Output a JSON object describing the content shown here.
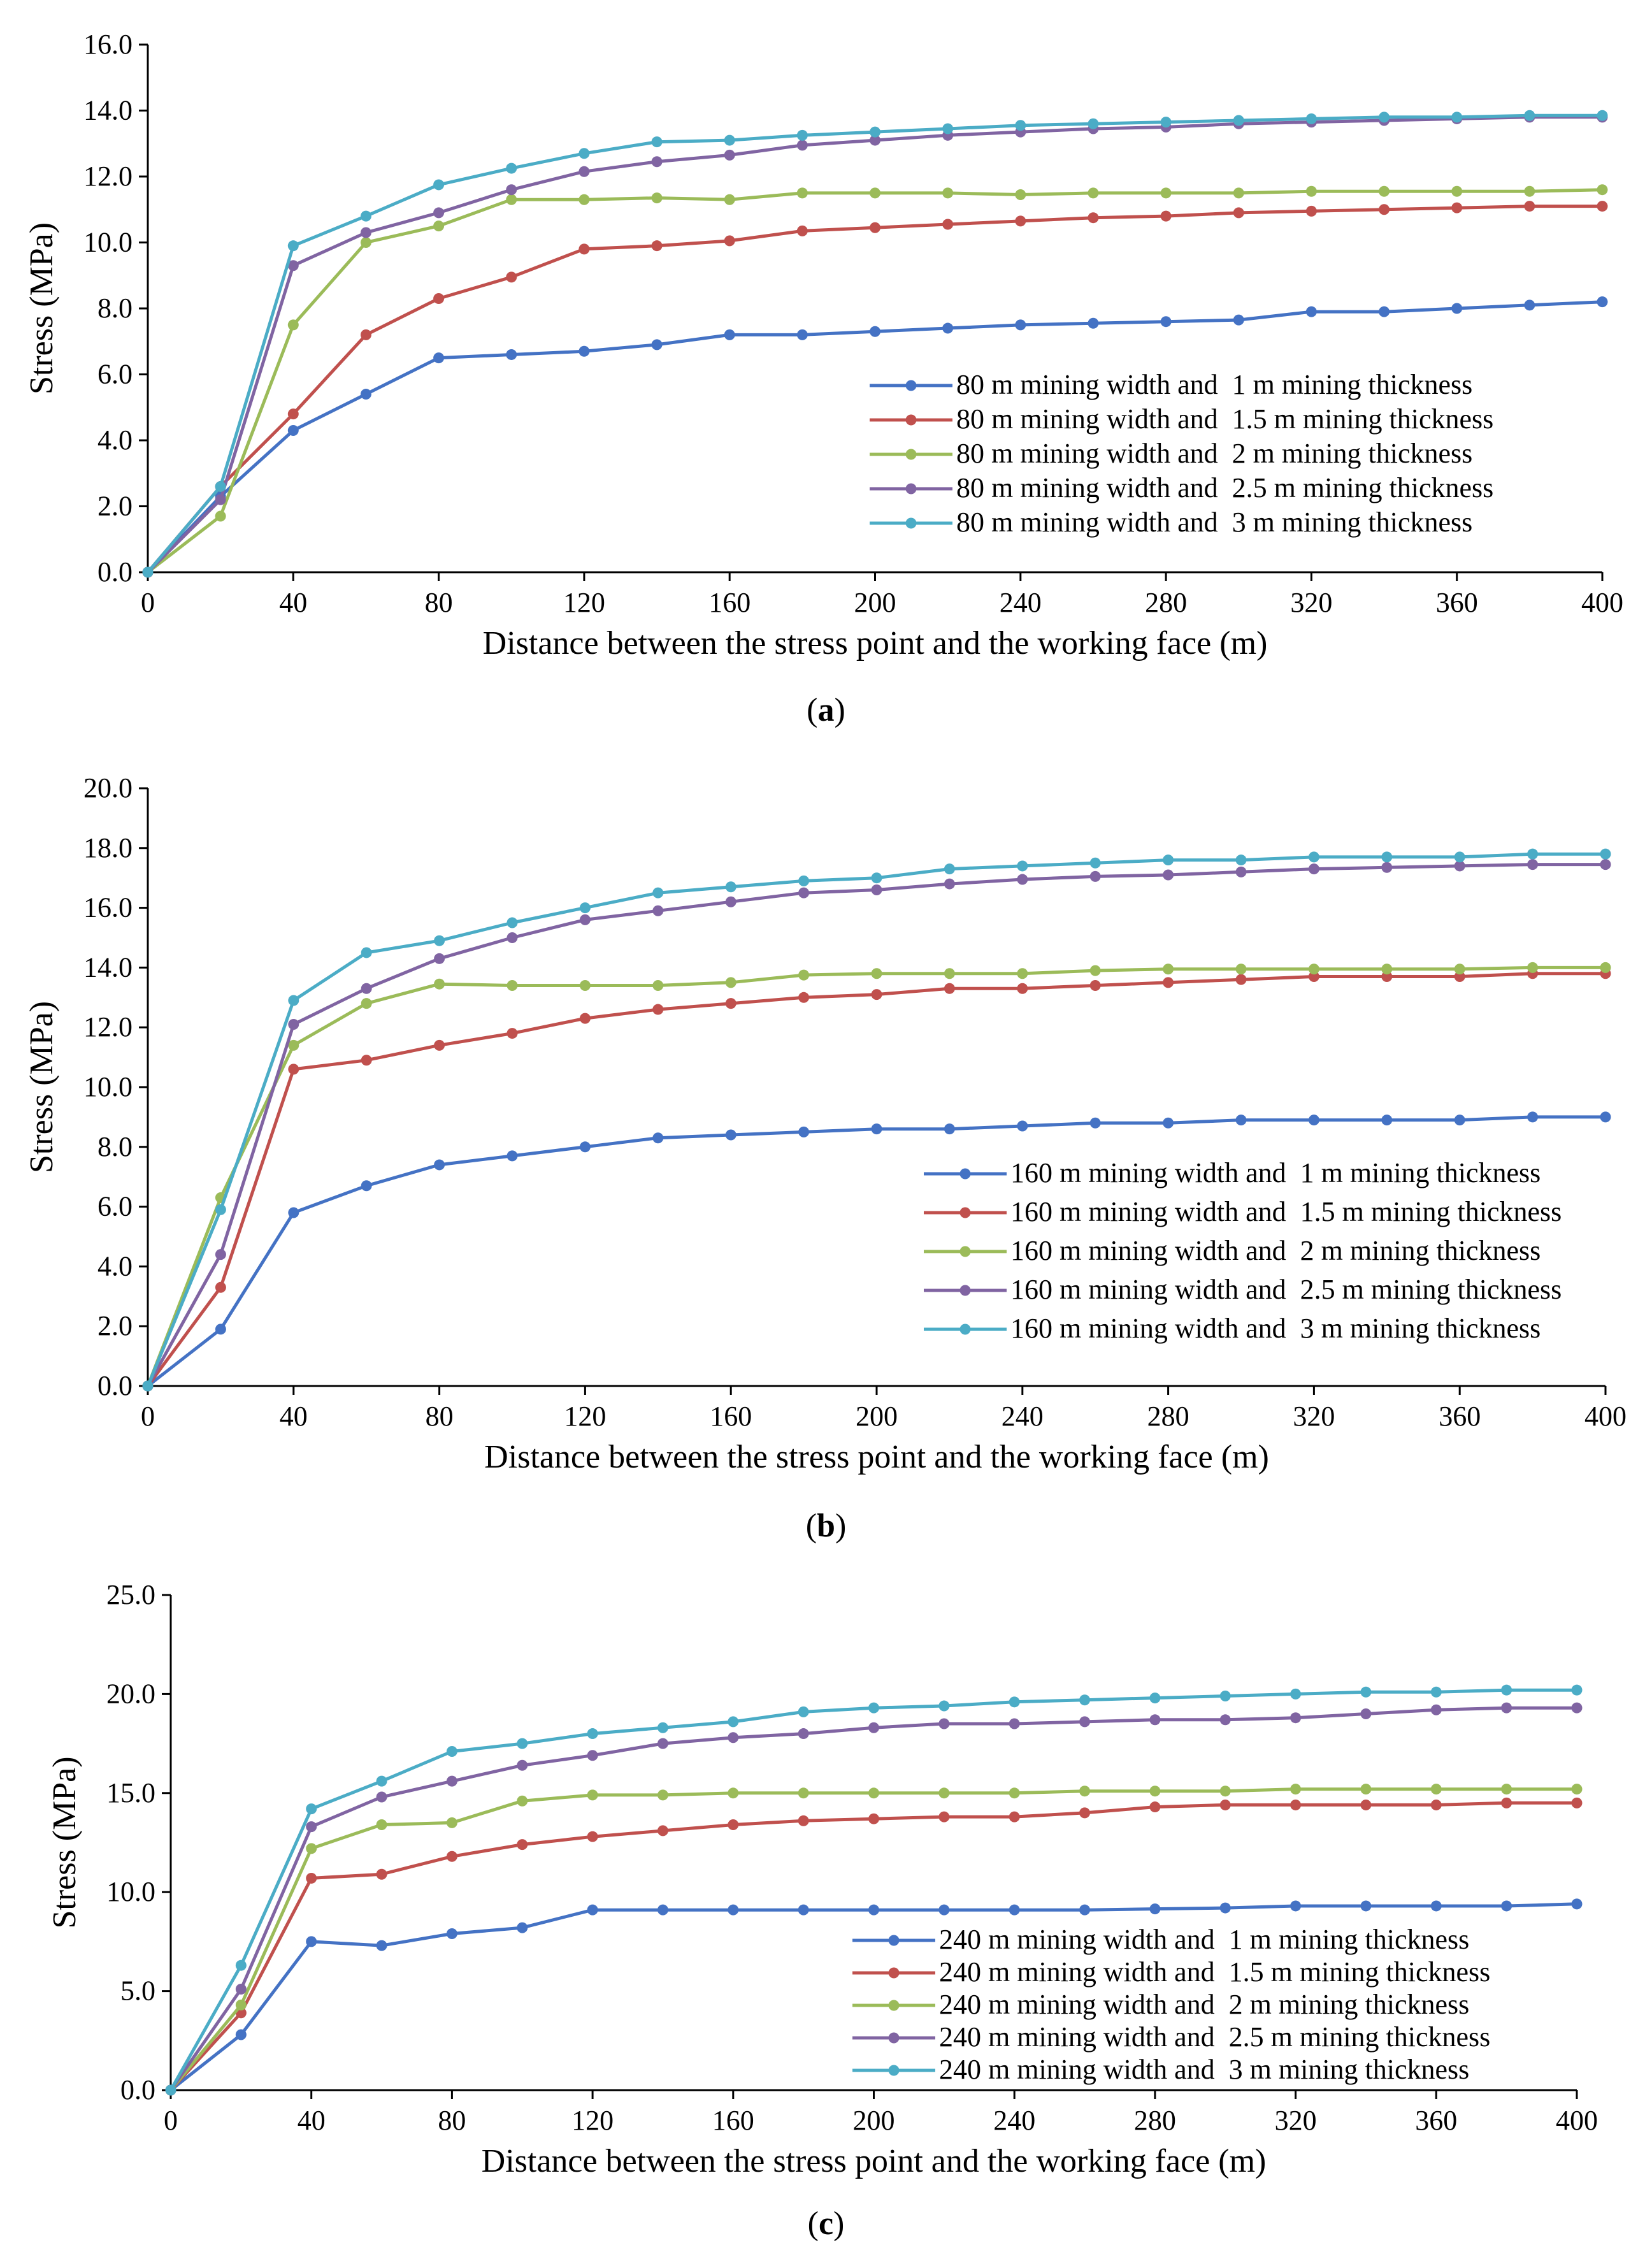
{
  "chart_data": [
    {
      "type": "line",
      "panel_label": "a",
      "xlabel": "Distance between the stress point and the working face (m)",
      "ylabel": "Stress (MPa)",
      "xlim": [
        0,
        400
      ],
      "ylim": [
        0,
        16
      ],
      "xticks": [
        "0",
        "40",
        "80",
        "120",
        "160",
        "200",
        "240",
        "280",
        "320",
        "360",
        "400"
      ],
      "yticks": [
        "0.0",
        "2.0",
        "4.0",
        "6.0",
        "8.0",
        "10.0",
        "12.0",
        "14.0",
        "16.0"
      ],
      "legend_position": "right-middle",
      "x": [
        0,
        20,
        40,
        60,
        80,
        100,
        120,
        140,
        160,
        180,
        200,
        220,
        240,
        260,
        280,
        300,
        320,
        340,
        360,
        380,
        400
      ],
      "series": [
        {
          "name": "80 m mining width and  1 m mining thickness",
          "color": "#4472C4",
          "values": [
            0,
            2.3,
            4.3,
            5.4,
            6.5,
            6.6,
            6.7,
            6.9,
            7.2,
            7.2,
            7.3,
            7.4,
            7.5,
            7.55,
            7.6,
            7.65,
            7.9,
            7.9,
            8.0,
            8.1,
            8.2
          ]
        },
        {
          "name": "80 m mining width and  1.5 m mining thickness",
          "color": "#C0504D",
          "values": [
            0,
            2.6,
            4.8,
            7.2,
            8.3,
            8.95,
            9.8,
            9.9,
            10.05,
            10.35,
            10.45,
            10.55,
            10.65,
            10.75,
            10.8,
            10.9,
            10.95,
            11.0,
            11.05,
            11.1,
            11.1
          ]
        },
        {
          "name": "80 m mining width and  2 m mining thickness",
          "color": "#9BBB59",
          "values": [
            0,
            1.7,
            7.5,
            10.0,
            10.5,
            11.3,
            11.3,
            11.35,
            11.3,
            11.5,
            11.5,
            11.5,
            11.45,
            11.5,
            11.5,
            11.5,
            11.55,
            11.55,
            11.55,
            11.55,
            11.6
          ]
        },
        {
          "name": "80 m mining width and  2.5 m mining thickness",
          "color": "#8064A2",
          "values": [
            0,
            2.2,
            9.3,
            10.3,
            10.9,
            11.6,
            12.15,
            12.45,
            12.65,
            12.95,
            13.1,
            13.25,
            13.35,
            13.45,
            13.5,
            13.6,
            13.65,
            13.7,
            13.75,
            13.8,
            13.8
          ]
        },
        {
          "name": "80 m mining width and  3 m mining thickness",
          "color": "#4BACC6",
          "values": [
            0,
            2.6,
            9.9,
            10.8,
            11.75,
            12.25,
            12.7,
            13.05,
            13.1,
            13.25,
            13.35,
            13.45,
            13.55,
            13.6,
            13.65,
            13.7,
            13.75,
            13.8,
            13.8,
            13.85,
            13.85
          ]
        }
      ]
    },
    {
      "type": "line",
      "panel_label": "b",
      "xlabel": "Distance between the stress point and the working face (m)",
      "ylabel": "Stress (MPa)",
      "xlim": [
        0,
        400
      ],
      "ylim": [
        0,
        20
      ],
      "xticks": [
        "0",
        "40",
        "80",
        "120",
        "160",
        "200",
        "240",
        "280",
        "320",
        "360",
        "400"
      ],
      "yticks": [
        "0.0",
        "2.0",
        "4.0",
        "6.0",
        "8.0",
        "10.0",
        "12.0",
        "14.0",
        "16.0",
        "18.0",
        "20.0"
      ],
      "legend_position": "bottom-right",
      "x": [
        0,
        20,
        40,
        60,
        80,
        100,
        120,
        140,
        160,
        180,
        200,
        220,
        240,
        260,
        280,
        300,
        320,
        340,
        360,
        380,
        400
      ],
      "series": [
        {
          "name": "160 m mining width and  1 m mining thickness",
          "color": "#4472C4",
          "values": [
            0,
            1.9,
            5.8,
            6.7,
            7.4,
            7.7,
            8.0,
            8.3,
            8.4,
            8.5,
            8.6,
            8.6,
            8.7,
            8.8,
            8.8,
            8.9,
            8.9,
            8.9,
            8.9,
            9.0,
            9.0
          ]
        },
        {
          "name": "160 m mining width and  1.5 m mining thickness",
          "color": "#C0504D",
          "values": [
            0,
            3.3,
            10.6,
            10.9,
            11.4,
            11.8,
            12.3,
            12.6,
            12.8,
            13.0,
            13.1,
            13.3,
            13.3,
            13.4,
            13.5,
            13.6,
            13.7,
            13.7,
            13.7,
            13.8,
            13.8
          ]
        },
        {
          "name": "160 m mining width and  2 m mining thickness",
          "color": "#9BBB59",
          "values": [
            0,
            6.3,
            11.4,
            12.8,
            13.45,
            13.4,
            13.4,
            13.4,
            13.5,
            13.75,
            13.8,
            13.8,
            13.8,
            13.9,
            13.95,
            13.95,
            13.95,
            13.95,
            13.95,
            14.0,
            14.0
          ]
        },
        {
          "name": "160 m mining width and  2.5 m mining thickness",
          "color": "#8064A2",
          "values": [
            0,
            4.4,
            12.1,
            13.3,
            14.3,
            15.0,
            15.6,
            15.9,
            16.2,
            16.5,
            16.6,
            16.8,
            16.95,
            17.05,
            17.1,
            17.2,
            17.3,
            17.35,
            17.4,
            17.45,
            17.45
          ]
        },
        {
          "name": "160 m mining width and  3 m mining thickness",
          "color": "#4BACC6",
          "values": [
            0,
            5.9,
            12.9,
            14.5,
            14.9,
            15.5,
            16.0,
            16.5,
            16.7,
            16.9,
            17.0,
            17.3,
            17.4,
            17.5,
            17.6,
            17.6,
            17.7,
            17.7,
            17.7,
            17.8,
            17.8
          ]
        }
      ]
    },
    {
      "type": "line",
      "panel_label": "c",
      "xlabel": "Distance between the stress point and the working face (m)",
      "ylabel": "Stress (MPa)",
      "xlim": [
        0,
        400
      ],
      "ylim": [
        0,
        25
      ],
      "xticks": [
        "0",
        "40",
        "80",
        "120",
        "160",
        "200",
        "240",
        "280",
        "320",
        "360",
        "400"
      ],
      "yticks": [
        "0.0",
        "5.0",
        "10.0",
        "15.0",
        "20.0",
        "25.0"
      ],
      "legend_position": "bottom-right",
      "x": [
        0,
        20,
        40,
        60,
        80,
        100,
        120,
        140,
        160,
        180,
        200,
        220,
        240,
        260,
        280,
        300,
        320,
        340,
        360,
        380,
        400
      ],
      "series": [
        {
          "name": "240 m mining width and  1 m mining thickness",
          "color": "#4472C4",
          "values": [
            0,
            2.8,
            7.5,
            7.3,
            7.9,
            8.2,
            9.1,
            9.1,
            9.1,
            9.1,
            9.1,
            9.1,
            9.1,
            9.1,
            9.15,
            9.2,
            9.3,
            9.3,
            9.3,
            9.3,
            9.4
          ]
        },
        {
          "name": "240 m mining width and  1.5 m mining thickness",
          "color": "#C0504D",
          "values": [
            0,
            3.9,
            10.7,
            10.9,
            11.8,
            12.4,
            12.8,
            13.1,
            13.4,
            13.6,
            13.7,
            13.8,
            13.8,
            14.0,
            14.3,
            14.4,
            14.4,
            14.4,
            14.4,
            14.5,
            14.5
          ]
        },
        {
          "name": "240 m mining width and  2 m mining thickness",
          "color": "#9BBB59",
          "values": [
            0,
            4.3,
            12.2,
            13.4,
            13.5,
            14.6,
            14.9,
            14.9,
            15.0,
            15.0,
            15.0,
            15.0,
            15.0,
            15.1,
            15.1,
            15.1,
            15.2,
            15.2,
            15.2,
            15.2,
            15.2
          ]
        },
        {
          "name": "240 m mining width and  2.5 m mining thickness",
          "color": "#8064A2",
          "values": [
            0,
            5.1,
            13.3,
            14.8,
            15.6,
            16.4,
            16.9,
            17.5,
            17.8,
            18.0,
            18.3,
            18.5,
            18.5,
            18.6,
            18.7,
            18.7,
            18.8,
            19.0,
            19.2,
            19.3,
            19.3
          ]
        },
        {
          "name": "240 m mining width and  3 m mining thickness",
          "color": "#4BACC6",
          "values": [
            0,
            6.3,
            14.2,
            15.6,
            17.1,
            17.5,
            18.0,
            18.3,
            18.6,
            19.1,
            19.3,
            19.4,
            19.6,
            19.7,
            19.8,
            19.9,
            20.0,
            20.1,
            20.1,
            20.2,
            20.2
          ]
        }
      ]
    }
  ]
}
